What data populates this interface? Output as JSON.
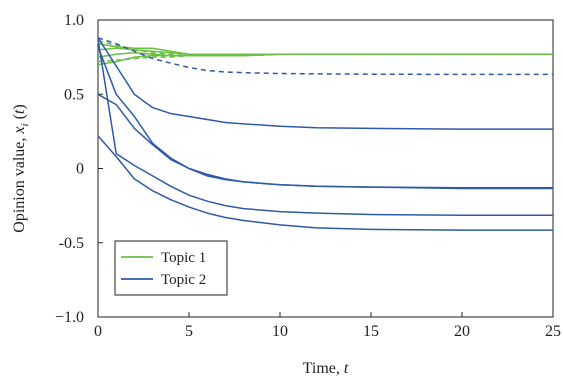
{
  "chart_data": {
    "type": "line",
    "xlabel": "Time, t",
    "ylabel": "Opinion value, x_i (t)",
    "xlim": [
      0,
      25
    ],
    "ylim": [
      -1.0,
      1.0
    ],
    "xticks": [
      0,
      5,
      10,
      15,
      20,
      25
    ],
    "xtick_labels": [
      "0",
      "5",
      "10",
      "15",
      "20",
      "25"
    ],
    "yticks": [
      -1.0,
      -0.5,
      0,
      0.5,
      1.0
    ],
    "ytick_labels": [
      "−1.0",
      "-0.5",
      "0",
      "0.5",
      "1.0"
    ],
    "grid": false,
    "legend_position": "bottom-left",
    "legend": [
      {
        "label": "Topic 1",
        "color": "#6cbf45"
      },
      {
        "label": "Topic 2",
        "color": "#2e5aa8"
      }
    ],
    "series": [
      {
        "topic": 1,
        "style": "solid",
        "color": "#6cbf45",
        "x": [
          0,
          1,
          2,
          3,
          4,
          5,
          6,
          7,
          8,
          10,
          12,
          15,
          20,
          25
        ],
        "y": [
          0.7,
          0.72,
          0.75,
          0.76,
          0.76,
          0.76,
          0.76,
          0.76,
          0.76,
          0.77,
          0.77,
          0.77,
          0.77,
          0.77
        ]
      },
      {
        "topic": 1,
        "style": "solid",
        "color": "#6cbf45",
        "x": [
          0,
          1,
          2,
          3,
          4,
          5,
          6,
          7,
          8,
          10,
          12,
          15,
          20,
          25
        ],
        "y": [
          0.75,
          0.77,
          0.78,
          0.77,
          0.76,
          0.76,
          0.76,
          0.76,
          0.76,
          0.77,
          0.77,
          0.77,
          0.77,
          0.77
        ]
      },
      {
        "topic": 1,
        "style": "solid",
        "color": "#6cbf45",
        "x": [
          0,
          1,
          2,
          3,
          4,
          5,
          6,
          7,
          8,
          10,
          12,
          15,
          20,
          25
        ],
        "y": [
          0.8,
          0.81,
          0.8,
          0.79,
          0.78,
          0.77,
          0.77,
          0.77,
          0.77,
          0.77,
          0.77,
          0.77,
          0.77,
          0.77
        ]
      },
      {
        "topic": 1,
        "style": "solid",
        "color": "#6cbf45",
        "x": [
          0,
          1,
          2,
          3,
          4,
          5,
          6,
          7,
          8,
          10,
          12,
          15,
          20,
          25
        ],
        "y": [
          0.84,
          0.82,
          0.81,
          0.81,
          0.79,
          0.77,
          0.77,
          0.77,
          0.77,
          0.77,
          0.77,
          0.77,
          0.77,
          0.77
        ]
      },
      {
        "topic": 1,
        "style": "dashed",
        "color": "#6cbf45",
        "x": [
          0,
          1,
          2,
          3,
          4,
          5,
          6,
          7,
          8,
          10,
          12,
          15,
          20,
          25
        ],
        "y": [
          0.86,
          0.83,
          0.8,
          0.78,
          0.77,
          0.76,
          0.76,
          0.76,
          0.76,
          0.77,
          0.77,
          0.77,
          0.77,
          0.77
        ]
      },
      {
        "topic": 1,
        "style": "dashed",
        "color": "#6cbf45",
        "x": [
          0,
          1,
          2,
          3,
          4,
          5,
          6,
          7,
          8,
          10,
          12,
          15,
          20,
          25
        ],
        "y": [
          0.72,
          0.73,
          0.74,
          0.75,
          0.75,
          0.76,
          0.76,
          0.76,
          0.76,
          0.77,
          0.77,
          0.77,
          0.77,
          0.77
        ]
      },
      {
        "topic": 2,
        "style": "dashed",
        "color": "#2e5aa8",
        "x": [
          0,
          1,
          2,
          3,
          4,
          5,
          6,
          7,
          8,
          10,
          12,
          15,
          20,
          25
        ],
        "y": [
          0.88,
          0.84,
          0.79,
          0.74,
          0.71,
          0.68,
          0.66,
          0.65,
          0.645,
          0.64,
          0.637,
          0.635,
          0.634,
          0.634
        ]
      },
      {
        "topic": 2,
        "style": "solid",
        "color": "#2e5aa8",
        "x": [
          0,
          1,
          2,
          3,
          4,
          5,
          6,
          7,
          8,
          10,
          12,
          15,
          20,
          25
        ],
        "y": [
          0.88,
          0.69,
          0.5,
          0.41,
          0.37,
          0.35,
          0.33,
          0.31,
          0.3,
          0.285,
          0.275,
          0.27,
          0.265,
          0.265
        ]
      },
      {
        "topic": 2,
        "style": "solid",
        "color": "#2e5aa8",
        "x": [
          0,
          1,
          2,
          3,
          4,
          5,
          6,
          7,
          8,
          10,
          12,
          15,
          20,
          25
        ],
        "y": [
          0.82,
          0.5,
          0.35,
          0.17,
          0.07,
          0.0,
          -0.04,
          -0.07,
          -0.09,
          -0.11,
          -0.12,
          -0.125,
          -0.135,
          -0.135
        ]
      },
      {
        "topic": 2,
        "style": "solid",
        "color": "#2e5aa8",
        "x": [
          0,
          1,
          2,
          3,
          4,
          5,
          6,
          7,
          8,
          10,
          12,
          15,
          20,
          25
        ],
        "y": [
          0.5,
          0.43,
          0.27,
          0.16,
          0.06,
          0.0,
          -0.05,
          -0.075,
          -0.09,
          -0.11,
          -0.12,
          -0.125,
          -0.13,
          -0.13
        ]
      },
      {
        "topic": 2,
        "style": "solid",
        "color": "#2e5aa8",
        "x": [
          0,
          1,
          2,
          3,
          4,
          5,
          6,
          7,
          8,
          10,
          12,
          15,
          20,
          25
        ],
        "y": [
          0.87,
          0.1,
          0.02,
          -0.05,
          -0.12,
          -0.18,
          -0.22,
          -0.25,
          -0.27,
          -0.29,
          -0.3,
          -0.31,
          -0.315,
          -0.315
        ]
      },
      {
        "topic": 2,
        "style": "solid",
        "color": "#2e5aa8",
        "x": [
          0,
          1,
          2,
          3,
          4,
          5,
          6,
          7,
          8,
          10,
          12,
          15,
          20,
          25
        ],
        "y": [
          0.22,
          0.08,
          -0.07,
          -0.15,
          -0.21,
          -0.26,
          -0.3,
          -0.33,
          -0.35,
          -0.38,
          -0.4,
          -0.41,
          -0.415,
          -0.415
        ]
      }
    ]
  }
}
